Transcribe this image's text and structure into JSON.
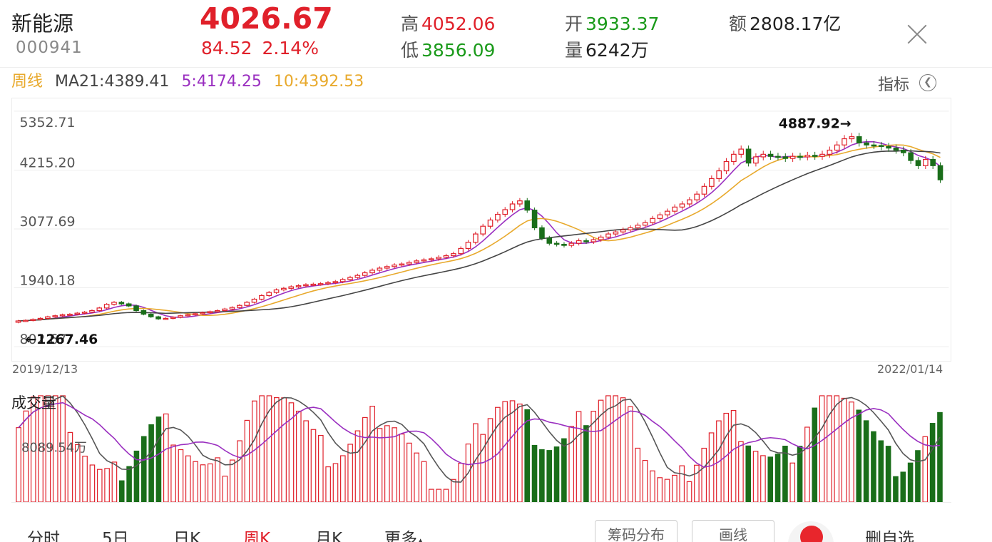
{
  "header": {
    "name": "新能源",
    "code": "000941",
    "price": "4026.67",
    "change": "84.52",
    "change_pct": "2.14%",
    "high_label": "高",
    "high": "4052.06",
    "low_label": "低",
    "low": "3856.09",
    "open_label": "开",
    "open": "3933.37",
    "vol_label": "量",
    "vol": "6242万",
    "amount_label": "额",
    "amount": "2808.17亿"
  },
  "ma_row": {
    "period": "周线",
    "ma21": "MA21:4389.41",
    "ma5": "5:4174.25",
    "ma10": "10:4392.53"
  },
  "indicator_label": "指标",
  "chart_data": {
    "type": "candlestick",
    "period": "weekly",
    "y_ticks": [
      "5352.71",
      "4215.20",
      "3077.69",
      "1940.18",
      "802.67"
    ],
    "ylim": [
      802.67,
      5352.71
    ],
    "x_start": "2019/12/13",
    "x_end": "2022/01/14",
    "max_annotation": "4887.92→",
    "max_value": 4887.92,
    "min_annotation": "←1267.46",
    "min_value": 1267.46,
    "close_series": [
      1300,
      1310,
      1330,
      1350,
      1380,
      1400,
      1420,
      1430,
      1450,
      1470,
      1500,
      1550,
      1620,
      1660,
      1630,
      1590,
      1500,
      1430,
      1380,
      1340,
      1350,
      1370,
      1400,
      1420,
      1440,
      1460,
      1480,
      1500,
      1530,
      1560,
      1600,
      1660,
      1720,
      1790,
      1850,
      1900,
      1930,
      1960,
      1980,
      2000,
      2010,
      2020,
      2040,
      2060,
      2100,
      2140,
      2180,
      2230,
      2280,
      2320,
      2350,
      2380,
      2400,
      2430,
      2460,
      2480,
      2500,
      2530,
      2560,
      2600,
      2700,
      2820,
      2980,
      3130,
      3250,
      3360,
      3450,
      3560,
      3620,
      3440,
      3100,
      2900,
      2800,
      2780,
      2760,
      2800,
      2850,
      2830,
      2870,
      2920,
      2980,
      3020,
      3060,
      3100,
      3150,
      3200,
      3280,
      3350,
      3420,
      3500,
      3560,
      3640,
      3750,
      3900,
      4050,
      4200,
      4380,
      4520,
      4620,
      4350,
      4470,
      4520,
      4480,
      4470,
      4440,
      4480,
      4470,
      4500,
      4480,
      4520,
      4600,
      4700,
      4820,
      4860,
      4740,
      4700,
      4690,
      4670,
      4640,
      4600,
      4550,
      4400,
      4300,
      4420,
      4300,
      4026.67
    ],
    "ma_legend": {
      "ma21_color": "#444444",
      "ma5_color": "#9a2fc0",
      "ma10_color": "#e8a92c"
    },
    "volume": {
      "title": "成交量",
      "y_tick": "8089.54万"
    }
  },
  "tabs": [
    "分时",
    "5日",
    "日K",
    "周K",
    "月K",
    "更多"
  ],
  "active_tab": "周K",
  "buttons": {
    "chip": "筹码分布",
    "draw": "画线",
    "remove": "删自选"
  },
  "colors": {
    "up": "#e0202a",
    "down": "#1a6e1a",
    "accent": "#e0202a"
  }
}
